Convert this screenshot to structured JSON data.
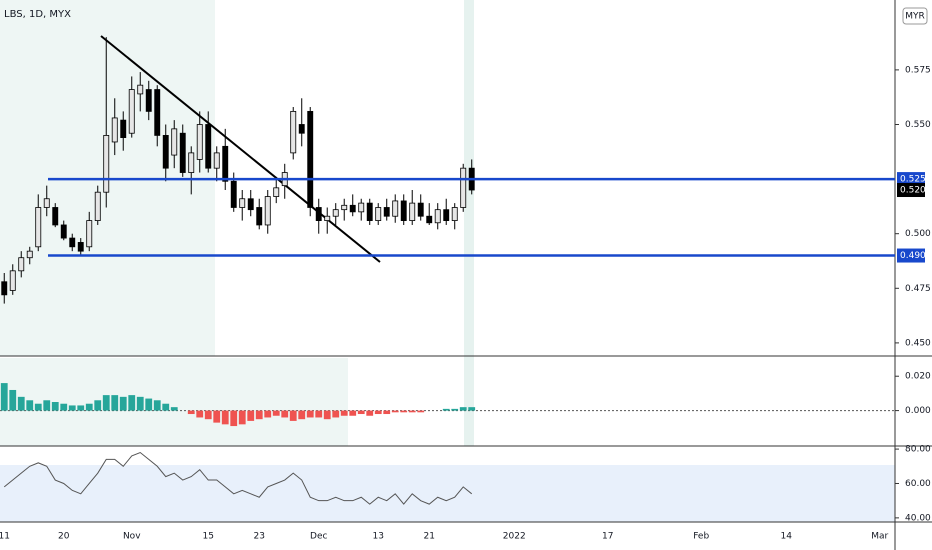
{
  "chart_data": [
    {
      "type": "candlestick",
      "title": "LBS, 1D, MYX",
      "unit": "MYR",
      "open": [
        0.478,
        0.474,
        0.483,
        0.489,
        0.494,
        0.512,
        0.512,
        0.504,
        0.498,
        0.496,
        0.494,
        0.506,
        0.519,
        0.542,
        0.552,
        0.546,
        0.564,
        0.566,
        0.566,
        0.545,
        0.536,
        0.546,
        0.528,
        0.534,
        0.55,
        0.53,
        0.54,
        0.524,
        0.512,
        0.516,
        0.512,
        0.504,
        0.517,
        0.522,
        0.537,
        0.55,
        0.556,
        0.512,
        0.506,
        0.508,
        0.511,
        0.513,
        0.51,
        0.514,
        0.506,
        0.512,
        0.508,
        0.515,
        0.506,
        0.514,
        0.508,
        0.505,
        0.511,
        0.506,
        0.512,
        0.53
      ],
      "high": [
        0.482,
        0.486,
        0.492,
        0.494,
        0.518,
        0.522,
        0.514,
        0.506,
        0.5,
        0.498,
        0.51,
        0.522,
        0.59,
        0.562,
        0.556,
        0.572,
        0.574,
        0.57,
        0.568,
        0.55,
        0.552,
        0.55,
        0.54,
        0.556,
        0.556,
        0.54,
        0.548,
        0.528,
        0.52,
        0.52,
        0.516,
        0.52,
        0.526,
        0.532,
        0.558,
        0.562,
        0.558,
        0.516,
        0.512,
        0.514,
        0.516,
        0.518,
        0.516,
        0.516,
        0.514,
        0.516,
        0.518,
        0.518,
        0.52,
        0.518,
        0.514,
        0.514,
        0.516,
        0.514,
        0.532,
        0.534
      ],
      "low": [
        0.468,
        0.472,
        0.48,
        0.486,
        0.492,
        0.508,
        0.503,
        0.497,
        0.492,
        0.49,
        0.492,
        0.504,
        0.512,
        0.536,
        0.538,
        0.544,
        0.556,
        0.552,
        0.54,
        0.524,
        0.53,
        0.526,
        0.518,
        0.528,
        0.528,
        0.524,
        0.52,
        0.51,
        0.506,
        0.508,
        0.502,
        0.5,
        0.514,
        0.516,
        0.534,
        0.54,
        0.508,
        0.5,
        0.5,
        0.504,
        0.506,
        0.508,
        0.506,
        0.504,
        0.504,
        0.506,
        0.505,
        0.504,
        0.504,
        0.506,
        0.504,
        0.502,
        0.504,
        0.502,
        0.51,
        0.518
      ],
      "close": [
        0.472,
        0.483,
        0.489,
        0.492,
        0.512,
        0.516,
        0.504,
        0.498,
        0.494,
        0.492,
        0.506,
        0.519,
        0.545,
        0.553,
        0.544,
        0.566,
        0.568,
        0.556,
        0.545,
        0.53,
        0.548,
        0.528,
        0.537,
        0.55,
        0.53,
        0.537,
        0.524,
        0.512,
        0.516,
        0.511,
        0.504,
        0.517,
        0.521,
        0.528,
        0.556,
        0.546,
        0.512,
        0.506,
        0.508,
        0.511,
        0.513,
        0.51,
        0.514,
        0.506,
        0.512,
        0.508,
        0.515,
        0.506,
        0.514,
        0.508,
        0.505,
        0.511,
        0.506,
        0.512,
        0.53,
        0.52
      ],
      "up_color": "#e6e6e6",
      "down_color": "#000000",
      "ylim": [
        0.444,
        0.607
      ],
      "yticks": [
        0.575,
        {
          "value": 0.55,
          "label": "0.550"
        },
        {
          "value": 0.5,
          "label": "0.500"
        },
        0.475,
        {
          "value": 0.45,
          "label": "0.450"
        }
      ],
      "hlines": [
        {
          "value": 0.525,
          "label": "0.525"
        },
        {
          "value": 0.49,
          "label": "0.490"
        }
      ],
      "hline_color": "#1848cc",
      "last_price": {
        "value": 0.52,
        "label": "0.520"
      }
    },
    {
      "type": "histogram",
      "values": [
        0.016,
        0.012,
        0.008,
        0.006,
        0.004,
        0.006,
        0.005,
        0.004,
        0.003,
        0.003,
        0.004,
        0.006,
        0.009,
        0.009,
        0.008,
        0.009,
        0.008,
        0.007,
        0.006,
        0.004,
        0.002,
        0,
        -0.002,
        -0.004,
        -0.005,
        -0.007,
        -0.008,
        -0.009,
        -0.008,
        -0.006,
        -0.005,
        -0.004,
        -0.003,
        -0.004,
        -0.006,
        -0.005,
        -0.004,
        -0.004,
        -0.005,
        -0.004,
        -0.003,
        -0.003,
        -0.002,
        -0.003,
        -0.002,
        -0.002,
        -0.001,
        -0.001,
        -0.001,
        -0.001,
        0,
        0,
        0.001,
        0.001,
        0.002,
        0.002
      ],
      "pos_color": "#26a69a",
      "neg_color": "#ef5350",
      "ylim": [
        -0.0206,
        0.0306
      ],
      "yticks": [
        {
          "value": 0.02,
          "label": "0.020"
        },
        {
          "value": 0,
          "label": "0.000"
        }
      ]
    },
    {
      "type": "line",
      "values": [
        58,
        62,
        66,
        70,
        72,
        70,
        62,
        60,
        56,
        54,
        60,
        66,
        74,
        74,
        70,
        76,
        78,
        74,
        70,
        64,
        66,
        62,
        64,
        68,
        62,
        62,
        58,
        54,
        56,
        54,
        52,
        58,
        60,
        62,
        66,
        62,
        52,
        50,
        50,
        52,
        50,
        50,
        52,
        48,
        52,
        50,
        54,
        48,
        54,
        50,
        48,
        52,
        50,
        52,
        58,
        54
      ],
      "color": "#555555",
      "ylim": [
        37.6,
        81.8
      ],
      "yticks": [
        {
          "value": 80,
          "label": "80.00"
        },
        {
          "value": 60,
          "label": "60.00"
        },
        {
          "value": 40,
          "label": "40.00"
        }
      ],
      "xlim": [
        -0.5,
        104.8
      ],
      "xticks": [
        {
          "value": 0,
          "label": "11"
        },
        {
          "value": 7,
          "label": "20"
        },
        {
          "value": 15,
          "label": "Nov"
        },
        {
          "value": 24,
          "label": "15"
        },
        {
          "value": 30,
          "label": "23"
        },
        {
          "value": 37,
          "label": "Dec"
        },
        {
          "value": 44,
          "label": "13"
        },
        {
          "value": 50,
          "label": "21"
        },
        {
          "value": 60,
          "label": "2022"
        },
        {
          "value": 71,
          "label": "17"
        },
        {
          "value": 82,
          "label": "Feb"
        },
        {
          "value": 92,
          "label": "14"
        },
        {
          "value": 103,
          "label": "Mar"
        }
      ]
    }
  ]
}
